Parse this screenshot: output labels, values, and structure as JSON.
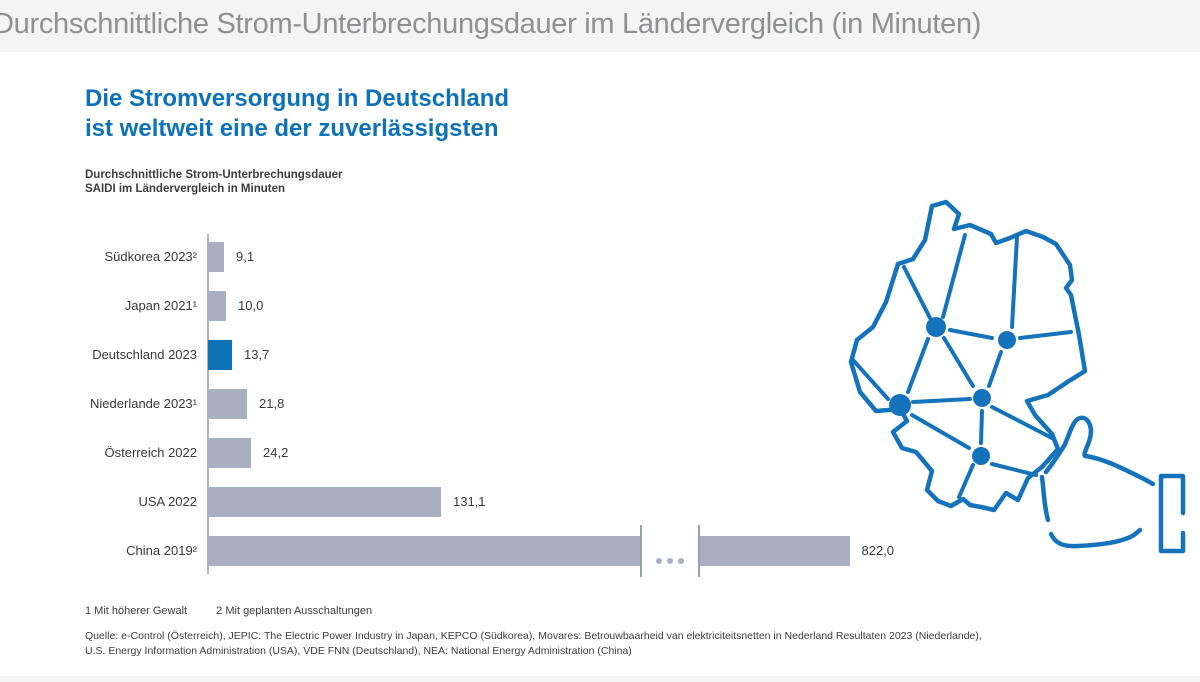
{
  "header": {
    "title": "Durchschnittliche Strom-Unterbrechungsdauer im Ländervergleich (in Minuten)"
  },
  "main": {
    "title_line1": "Die Stromversorgung in Deutschland",
    "title_line2": "ist weltweit eine der zuverlässigsten",
    "subtitle_line1": "Durchschnittliche Strom-Unterbrechungsdauer",
    "subtitle_line2": "SAIDI im Ländervergleich in Minuten",
    "footnote1": "1 Mit höherer Gewalt",
    "footnote2": "2 Mit geplanten Ausschaltungen",
    "source_line1": "Quelle: e-Control (Österreich), JEPIC: The Electric Power Industry in Japan, KEPCO (Südkorea), Movares: Betrouwbaarheid van elektriciteitsnetten in Nederland Resultaten 2023 (Niederlande),",
    "source_line2": "U.S. Energy Information Administration (USA), VDE FNN (Deutschland), NEA: National Energy Administration (China)"
  },
  "chart_data": {
    "type": "bar",
    "orientation": "horizontal",
    "title": "Durchschnittliche Strom-Unterbrechungsdauer SAIDI im Ländervergleich in Minuten",
    "unit": "Minuten",
    "categories": [
      "Südkorea 2023²",
      "Japan 2021¹",
      "Deutschland 2023",
      "Niederlande 2023¹",
      "Österreich 2022",
      "USA 2022",
      "China 2019²"
    ],
    "values": [
      9.1,
      10.0,
      13.7,
      21.8,
      24.2,
      131.1,
      822.0
    ],
    "value_labels": [
      "9,1",
      "10,0",
      "13,7",
      "21,8",
      "24,2",
      "131,1",
      "822,0"
    ],
    "highlight_category": "Deutschland 2023",
    "highlight_index": 2,
    "broken_bar_index": 6,
    "broken_bar_note": "China bar drawn with axis break (…)",
    "bar_color": "#a7afc0",
    "highlight_color": "#0e73b6",
    "grid": false,
    "legend": false
  },
  "illustration": {
    "name": "germany-power-grid-map-with-thumbs-up",
    "color": "#1473ba"
  },
  "colors": {
    "accent_blue": "#0d72b7",
    "bar_gray": "#a7afc0",
    "map_blue": "#1473ba",
    "header_text": "#8f9092",
    "header_bg": "#f4f4f5"
  }
}
